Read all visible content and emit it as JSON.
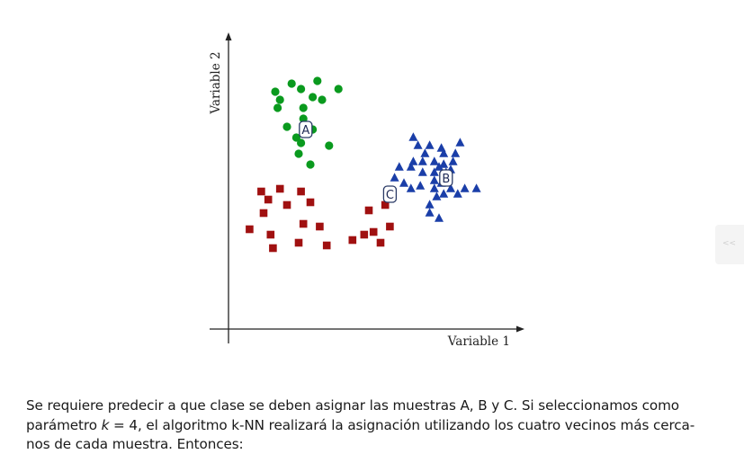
{
  "figure": {
    "xlabel": "Variable 1",
    "ylabel": "Variable 2",
    "sample_labels": {
      "A": "A",
      "B": "B",
      "C": "C"
    },
    "colors": {
      "green": "#0a9a1e",
      "blue": "#1a3ea8",
      "red": "#a01010",
      "axis": "#222222",
      "box": "#2a3a66"
    }
  },
  "chart_data": {
    "type": "scatter",
    "xlabel": "Variable 1",
    "ylabel": "Variable 2",
    "grid": false,
    "series": [
      {
        "marker": "circle",
        "color": "#0a9a1e",
        "points": [
          [
            2.0,
            8.8
          ],
          [
            2.7,
            9.1
          ],
          [
            3.8,
            9.2
          ],
          [
            2.2,
            8.5
          ],
          [
            3.1,
            8.9
          ],
          [
            3.6,
            8.6
          ],
          [
            4.0,
            8.5
          ],
          [
            4.7,
            8.9
          ],
          [
            2.1,
            8.2
          ],
          [
            3.2,
            8.2
          ],
          [
            3.2,
            7.8
          ],
          [
            2.5,
            7.5
          ],
          [
            3.6,
            7.4
          ],
          [
            2.9,
            7.1
          ],
          [
            3.1,
            6.9
          ],
          [
            4.3,
            6.8
          ],
          [
            3.0,
            6.5
          ],
          [
            3.5,
            6.1
          ]
        ]
      },
      {
        "marker": "triangle",
        "color": "#1a3ea8",
        "points": [
          [
            7.9,
            7.1
          ],
          [
            8.1,
            6.8
          ],
          [
            8.6,
            6.8
          ],
          [
            9.1,
            6.7
          ],
          [
            9.9,
            6.9
          ],
          [
            8.4,
            6.5
          ],
          [
            9.2,
            6.5
          ],
          [
            9.7,
            6.5
          ],
          [
            7.9,
            6.2
          ],
          [
            8.3,
            6.2
          ],
          [
            8.8,
            6.2
          ],
          [
            9.2,
            6.1
          ],
          [
            9.6,
            6.2
          ],
          [
            7.3,
            6.0
          ],
          [
            7.8,
            6.0
          ],
          [
            9.0,
            6.0
          ],
          [
            9.5,
            5.9
          ],
          [
            8.3,
            5.8
          ],
          [
            8.8,
            5.8
          ],
          [
            9.3,
            5.8
          ],
          [
            7.1,
            5.6
          ],
          [
            7.5,
            5.4
          ],
          [
            8.8,
            5.5
          ],
          [
            9.1,
            5.4
          ],
          [
            8.2,
            5.3
          ],
          [
            8.8,
            5.2
          ],
          [
            9.5,
            5.2
          ],
          [
            10.1,
            5.2
          ],
          [
            10.6,
            5.2
          ],
          [
            7.8,
            5.2
          ],
          [
            9.8,
            5.0
          ],
          [
            8.9,
            4.9
          ],
          [
            9.2,
            5.0
          ],
          [
            8.6,
            4.6
          ],
          [
            8.6,
            4.3
          ],
          [
            9.0,
            4.1
          ]
        ]
      },
      {
        "marker": "square",
        "color": "#a01010",
        "points": [
          [
            1.4,
            5.1
          ],
          [
            2.2,
            5.2
          ],
          [
            3.1,
            5.1
          ],
          [
            1.7,
            4.8
          ],
          [
            2.5,
            4.6
          ],
          [
            3.5,
            4.7
          ],
          [
            1.5,
            4.3
          ],
          [
            6.0,
            4.4
          ],
          [
            6.7,
            4.6
          ],
          [
            0.9,
            3.7
          ],
          [
            3.2,
            3.9
          ],
          [
            3.9,
            3.8
          ],
          [
            1.8,
            3.5
          ],
          [
            5.8,
            3.5
          ],
          [
            6.2,
            3.6
          ],
          [
            6.9,
            3.8
          ],
          [
            1.9,
            3.0
          ],
          [
            3.0,
            3.2
          ],
          [
            4.2,
            3.1
          ],
          [
            5.3,
            3.3
          ],
          [
            6.5,
            3.2
          ]
        ]
      }
    ],
    "annotations": [
      {
        "text": "A",
        "x": 3.3,
        "y": 7.4
      },
      {
        "text": "B",
        "x": 9.3,
        "y": 5.6
      },
      {
        "text": "C",
        "x": 6.9,
        "y": 5.0
      }
    ]
  },
  "question": {
    "line1": "Se requiere predecir a que clase se deben asignar las muestras A, B y C. Si seleccionamos como",
    "line2_before": "parámetro ",
    "line2_k": "k",
    "line2_after": " = 4, el algoritmo k-NN realizará la asignación utilizando los cuatro vecinos más cerca-",
    "line3": "nos de cada muestra. Entonces:"
  }
}
